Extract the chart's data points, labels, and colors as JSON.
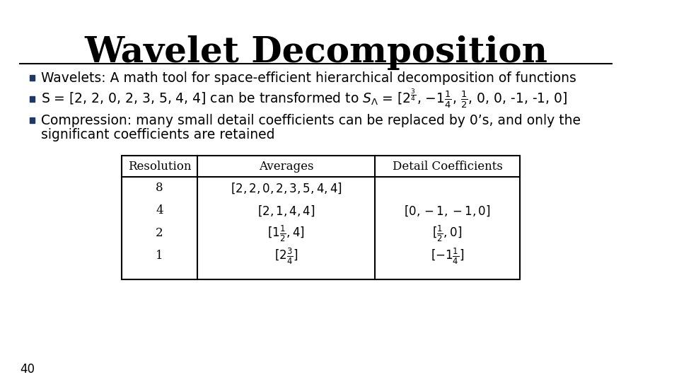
{
  "title": "Wavelet Decomposition",
  "slide_number": "40",
  "bullet1": "Wavelets: A math tool for space-efficient hierarchical decomposition of functions",
  "bullet2_pre": "S = [2, 2, 0, 2, 3, 5, 4, 4] can be transformed to S",
  "bullet3_line1": "Compression: many small detail coefficients can be replaced by 0’s, and only the",
  "bullet3_line2": "significant coefficients are retained",
  "table_headers": [
    "Resolution",
    "Averages",
    "Detail Coefficients"
  ],
  "bg_color": "#ffffff",
  "title_color": "#000000",
  "text_color": "#000000",
  "bullet_color": "#1F3864",
  "line_color": "#000000",
  "table_border_color": "#000000"
}
